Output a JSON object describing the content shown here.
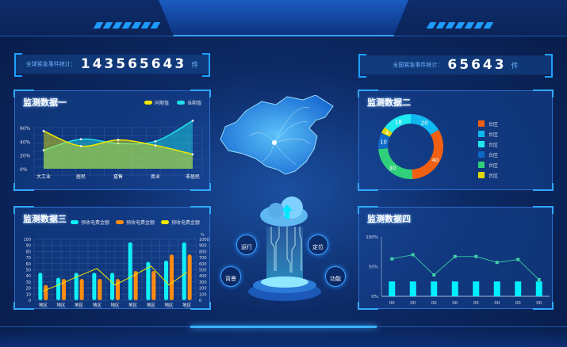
{
  "header": {
    "global_stat": {
      "label": "全球紧急事件统计：",
      "value": "143565643",
      "unit": "件"
    },
    "national_stat": {
      "label": "全国紧急事件统计：",
      "value": "65643",
      "unit": "件"
    }
  },
  "center": {
    "buttons": [
      "运行",
      "定位",
      "背景",
      "功能"
    ]
  },
  "chart_data": [
    {
      "title": "监测数据一",
      "type": "area",
      "categories": [
        "大工业",
        "居民",
        "趸售",
        "商业",
        "非居民"
      ],
      "ylim": [
        0,
        60
      ],
      "yticks": [
        "0%",
        "20%",
        "40%",
        "60%"
      ],
      "series": [
        {
          "name": "同期值",
          "color": "#f0e800",
          "values": [
            55,
            33,
            42,
            34,
            21
          ]
        },
        {
          "name": "当期值",
          "color": "#20e0e8",
          "values": [
            27,
            43,
            37,
            40,
            70
          ]
        }
      ]
    },
    {
      "title": "监测数据二",
      "type": "pie",
      "donut": true,
      "slices": [
        {
          "label": "台区",
          "value": 40,
          "color": "#f06010"
        },
        {
          "label": "台区",
          "value": 20,
          "color": "#10b8f0"
        },
        {
          "label": "台区",
          "value": 18,
          "color": "#20e8f0"
        },
        {
          "label": "台区",
          "value": 10,
          "color": "#1068c8"
        },
        {
          "label": "台区",
          "value": 30,
          "color": "#30d07a"
        },
        {
          "label": "台区",
          "value": 4,
          "color": "#e0d800"
        }
      ],
      "order_clockwise_from_top": [
        1,
        0,
        4,
        3,
        5,
        2
      ]
    },
    {
      "title": "监测数据三",
      "type": "bar",
      "categories": [
        "地区",
        "地区",
        "地区",
        "地区",
        "地区",
        "地区",
        "地区",
        "地区",
        "地区"
      ],
      "ylim": [
        0,
        100
      ],
      "y2lim": [
        0,
        1000
      ],
      "y2unit": "%",
      "yticks": [
        0,
        10,
        20,
        30,
        40,
        50,
        60,
        70,
        80,
        90,
        100
      ],
      "y2ticks": [
        0,
        100,
        200,
        300,
        400,
        500,
        600,
        700,
        800,
        900,
        1000
      ],
      "series": [
        {
          "name": "预收电费金额",
          "color": "#10f0f8",
          "values": [
            45,
            37,
            45,
            45,
            45,
            95,
            63,
            65,
            95
          ]
        },
        {
          "name": "预收电费金额",
          "color": "#ff8c10",
          "values": [
            25,
            35,
            35,
            35,
            35,
            48,
            48,
            75,
            75
          ]
        },
        {
          "name": "预收电费金额",
          "color": "#f0e800",
          "type": "line",
          "axis": "right",
          "values": [
            150,
            270,
            400,
            520,
            250,
            400,
            560,
            250,
            460
          ]
        }
      ]
    },
    {
      "title": "监测数据四",
      "type": "bar+line",
      "categories": [
        "00",
        "00",
        "00",
        "00",
        "00",
        "00",
        "00",
        "00"
      ],
      "ylim": [
        0,
        100
      ],
      "yticks": [
        "0%",
        "50%",
        "100%"
      ],
      "series": [
        {
          "type": "bar",
          "color": "#00f0ff",
          "values": [
            25,
            25,
            25,
            25,
            25,
            25,
            25,
            25
          ]
        },
        {
          "type": "line",
          "color": "#30c0a0",
          "values": [
            63,
            70,
            36,
            67,
            67,
            57,
            62,
            28
          ]
        }
      ]
    }
  ]
}
